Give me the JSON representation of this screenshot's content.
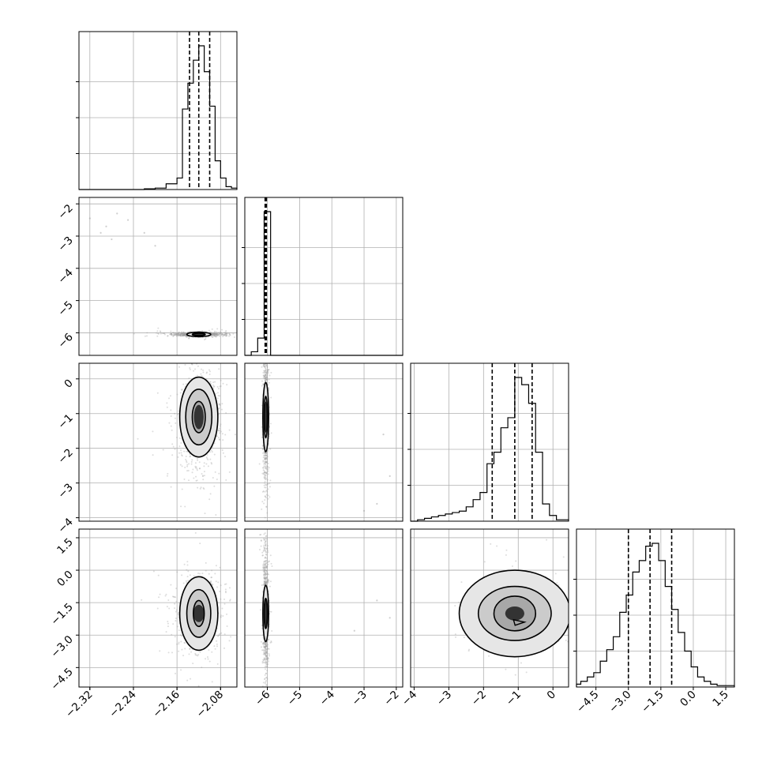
{
  "figure": {
    "kind": "corner plot",
    "background": "#ffffff",
    "ink": "#000000",
    "grid_color": "#b0b0b0",
    "point_color": "#9e9e9e"
  },
  "chart_data": [
    {
      "type": "histogram",
      "panel": "1-1",
      "x": "p1",
      "range": [
        -2.34,
        -2.05
      ],
      "quantiles": [
        -2.137,
        -2.12,
        -2.1
      ],
      "xticks": [
        "−2.32",
        "−2.24",
        "−2.16",
        "−2.08"
      ],
      "bins": [
        -2.34,
        -2.32,
        -2.3,
        -2.28,
        -2.26,
        -2.24,
        -2.22,
        -2.2,
        -2.18,
        -2.16,
        -2.15,
        -2.14,
        -2.13,
        -2.12,
        -2.11,
        -2.1,
        -2.09,
        -2.08,
        -2.07,
        -2.06,
        -2.05
      ],
      "counts": [
        0,
        0,
        0,
        0,
        0,
        0,
        0.5,
        1,
        4,
        8,
        56,
        74,
        90,
        100,
        82,
        58,
        20,
        8,
        2,
        1
      ]
    },
    {
      "type": "scatter",
      "panel": "2-1",
      "x": "p1",
      "y": "p2",
      "xrange": [
        -2.34,
        -2.05
      ],
      "yrange": [
        -6.7,
        -1.8
      ],
      "yticks": [
        "−2",
        "−3",
        "−4",
        "−5",
        "−6"
      ],
      "core": {
        "center": [
          -2.12,
          -6.05
        ],
        "spread": [
          0.022,
          0.03
        ]
      },
      "contours": [
        {
          "rx": 0.022,
          "ry": 0.07
        },
        {
          "rx": 0.012,
          "ry": 0.035
        }
      ],
      "outliers": [
        [
          -2.32,
          -2.45
        ],
        [
          -2.29,
          -2.7
        ],
        [
          -2.27,
          -2.3
        ],
        [
          -2.25,
          -2.5
        ],
        [
          -2.22,
          -2.9
        ],
        [
          -2.2,
          -3.3
        ],
        [
          -2.3,
          -2.9
        ],
        [
          -2.28,
          -3.1
        ]
      ]
    },
    {
      "type": "histogram",
      "panel": "2-2",
      "x": "p2",
      "range": [
        -6.7,
        -1.8
      ],
      "quantiles": [
        -6.07,
        -6.05,
        -6.03
      ],
      "bins": [
        -6.7,
        -6.5,
        -6.3,
        -6.1,
        -5.9,
        -1.8
      ],
      "counts": [
        0,
        2.5,
        12,
        100,
        0
      ]
    },
    {
      "type": "scatter",
      "panel": "3-1",
      "x": "p1",
      "y": "p3",
      "xrange": [
        -2.34,
        -2.05
      ],
      "yrange": [
        -4.1,
        0.45
      ],
      "yticks": [
        "0",
        "−1",
        "−2",
        "−3",
        "−4"
      ],
      "core": {
        "center": [
          -2.12,
          -1.1
        ],
        "spread": [
          0.018,
          0.7
        ]
      },
      "contours": [
        {
          "rx": 0.035,
          "ry": 1.15
        },
        {
          "rx": 0.024,
          "ry": 0.8
        },
        {
          "rx": 0.012,
          "ry": 0.45
        }
      ]
    },
    {
      "type": "scatter",
      "panel": "3-2",
      "x": "p2",
      "y": "p3",
      "xrange": [
        -6.7,
        -1.8
      ],
      "yrange": [
        -4.1,
        0.45
      ],
      "core": {
        "center": [
          -6.05,
          -1.1
        ],
        "spread": [
          0.04,
          0.9
        ]
      },
      "contours": [
        {
          "rx": 0.09,
          "ry": 1.0
        },
        {
          "rx": 0.05,
          "ry": 0.6
        }
      ],
      "outliers": [
        [
          -2.4,
          -1.6
        ],
        [
          -2.2,
          -2.8
        ],
        [
          -2.6,
          -3.6
        ],
        [
          -3.0,
          -3.8
        ]
      ]
    },
    {
      "type": "histogram",
      "panel": "3-3",
      "x": "p3",
      "range": [
        -4.1,
        0.45
      ],
      "quantiles": [
        -1.75,
        -1.1,
        -0.6
      ],
      "bins": [
        -4.1,
        -3.9,
        -3.7,
        -3.5,
        -3.3,
        -3.1,
        -2.9,
        -2.7,
        -2.5,
        -2.3,
        -2.1,
        -1.9,
        -1.7,
        -1.5,
        -1.3,
        -1.1,
        -0.9,
        -0.7,
        -0.5,
        -0.3,
        -0.1,
        0.1,
        0.45
      ],
      "counts": [
        0,
        1,
        2,
        3,
        4,
        5,
        6,
        7,
        10,
        15,
        20,
        40,
        48,
        65,
        72,
        100,
        95,
        82,
        48,
        12,
        4,
        1
      ]
    },
    {
      "type": "scatter",
      "panel": "4-1",
      "x": "p1",
      "y": "p4",
      "xrange": [
        -2.34,
        -2.05
      ],
      "yrange": [
        -5.4,
        1.9
      ],
      "yticks": [
        "1.5",
        "0.0",
        "−1.5",
        "−3.0",
        "−4.5"
      ],
      "core": {
        "center": [
          -2.12,
          -2.0
        ],
        "spread": [
          0.02,
          0.8
        ]
      },
      "contours": [
        {
          "rx": 0.035,
          "ry": 1.7
        },
        {
          "rx": 0.022,
          "ry": 1.1
        },
        {
          "rx": 0.01,
          "ry": 0.6
        }
      ]
    },
    {
      "type": "scatter",
      "panel": "4-2",
      "x": "p2",
      "y": "p4",
      "xrange": [
        -6.7,
        -1.8
      ],
      "yrange": [
        -5.4,
        1.9
      ],
      "xticks": [
        "−6",
        "−5",
        "−4",
        "−3",
        "−2"
      ],
      "core": {
        "center": [
          -6.05,
          -2.0
        ],
        "spread": [
          0.04,
          1.4
        ]
      },
      "contours": [
        {
          "rx": 0.09,
          "ry": 1.3
        },
        {
          "rx": 0.05,
          "ry": 0.7
        }
      ],
      "outliers": [
        [
          -2.6,
          -1.4
        ],
        [
          -2.2,
          -2.2
        ],
        [
          -3.3,
          -2.8
        ]
      ]
    },
    {
      "type": "scatter",
      "panel": "4-3",
      "x": "p3",
      "y": "p4",
      "xrange": [
        -4.1,
        0.45
      ],
      "yrange": [
        -5.4,
        1.9
      ],
      "xticks": [
        "−4",
        "−3",
        "−2",
        "−1",
        "0"
      ],
      "core": {
        "center": [
          -1.1,
          -2.0
        ],
        "spread": [
          0.55,
          0.65
        ]
      },
      "contours": [
        {
          "rx": 1.6,
          "ry": 2.0
        },
        {
          "rx": 1.05,
          "ry": 1.25
        },
        {
          "rx": 0.6,
          "ry": 0.8
        }
      ],
      "peak": [
        -1.0,
        -2.4
      ]
    },
    {
      "type": "histogram",
      "panel": "4-4",
      "x": "p4",
      "range": [
        -5.4,
        1.9
      ],
      "quantiles": [
        -3.0,
        -2.0,
        -1.0
      ],
      "xticks": [
        "−4.5",
        "−3.0",
        "−1.5",
        "0.0",
        "1.5"
      ],
      "bins": [
        -5.4,
        -5.2,
        -4.9,
        -4.6,
        -4.3,
        -4.0,
        -3.7,
        -3.4,
        -3.1,
        -2.8,
        -2.5,
        -2.2,
        -1.9,
        -1.6,
        -1.3,
        -1.0,
        -0.7,
        -0.4,
        -0.1,
        0.2,
        0.5,
        0.8,
        1.1,
        1.9
      ],
      "counts": [
        2,
        4,
        7,
        10,
        18,
        26,
        35,
        52,
        64,
        80,
        88,
        98,
        100,
        88,
        70,
        54,
        38,
        25,
        14,
        7,
        4,
        2,
        1
      ]
    }
  ]
}
